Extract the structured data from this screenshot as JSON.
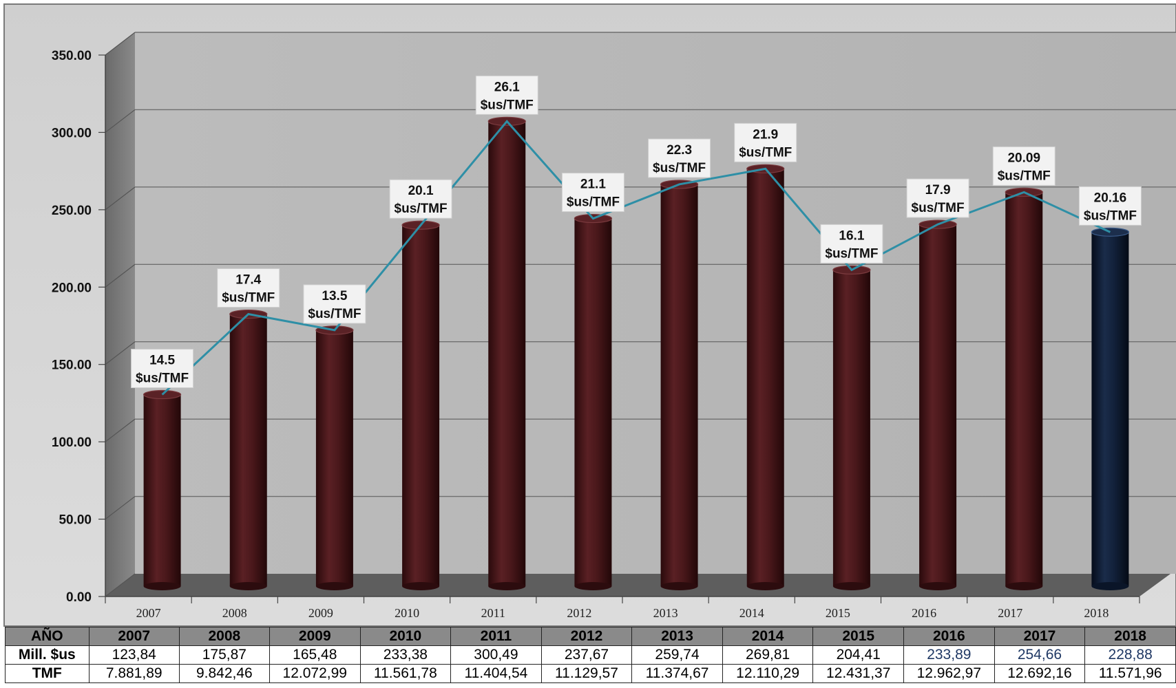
{
  "chart_data": {
    "type": "bar",
    "categories": [
      "2007",
      "2008",
      "2009",
      "2010",
      "2011",
      "2012",
      "2013",
      "2014",
      "2015",
      "2016",
      "2017",
      "2018"
    ],
    "series": [
      {
        "values": [
          123.84,
          175.87,
          165.48,
          233.38,
          300.49,
          237.67,
          259.74,
          269.81,
          204.41,
          233.89,
          254.66,
          228.88
        ]
      }
    ],
    "line_series": {
      "values": [
        123.84,
        175.87,
        165.48,
        233.38,
        300.49,
        237.67,
        259.74,
        269.81,
        204.41,
        233.89,
        254.66,
        228.88
      ],
      "color": "#2e8fa6"
    },
    "data_labels": [
      {
        "value": "14.5",
        "unit": "$us/TMF"
      },
      {
        "value": "17.4",
        "unit": "$us/TMF"
      },
      {
        "value": "13.5",
        "unit": "$us/TMF"
      },
      {
        "value": "20.1",
        "unit": "$us/TMF"
      },
      {
        "value": "26.1",
        "unit": "$us/TMF"
      },
      {
        "value": "21.1",
        "unit": "$us/TMF"
      },
      {
        "value": "22.3",
        "unit": "$us/TMF"
      },
      {
        "value": "21.9",
        "unit": "$us/TMF"
      },
      {
        "value": "16.1",
        "unit": "$us/TMF"
      },
      {
        "value": "17.9",
        "unit": "$us/TMF"
      },
      {
        "value": "20.09",
        "unit": "$us/TMF"
      },
      {
        "value": "20.16",
        "unit": "$us/TMF"
      }
    ],
    "ylim": [
      0,
      350
    ],
    "yticks": [
      "0.00",
      "50.00",
      "100.00",
      "150.00",
      "200.00",
      "250.00",
      "300.00",
      "350.00"
    ],
    "grid": true,
    "style": "3d-cylinder",
    "bar_color": "#4a1a1d",
    "highlight_bar_color": "#0e1c33",
    "highlight_index": 11
  },
  "table": {
    "header_label": "AÑO",
    "years": [
      "2007",
      "2008",
      "2009",
      "2010",
      "2011",
      "2012",
      "2013",
      "2014",
      "2015",
      "2016",
      "2017",
      "2018"
    ],
    "rows": [
      {
        "label": "Mill. $us",
        "values": [
          "123,84",
          "175,87",
          "165,48",
          "233,38",
          "300,49",
          "237,67",
          "259,74",
          "269,81",
          "204,41",
          "233,89",
          "254,66",
          "228,88"
        ],
        "blue_indices": [
          9,
          10,
          11
        ]
      },
      {
        "label": "TMF",
        "values": [
          "7.881,89",
          "9.842,46",
          "12.072,99",
          "11.561,78",
          "11.404,54",
          "11.129,57",
          "11.374,67",
          "12.110,29",
          "12.431,37",
          "12.962,97",
          "12.692,16",
          "11.571,96"
        ],
        "blue_indices": []
      }
    ]
  }
}
